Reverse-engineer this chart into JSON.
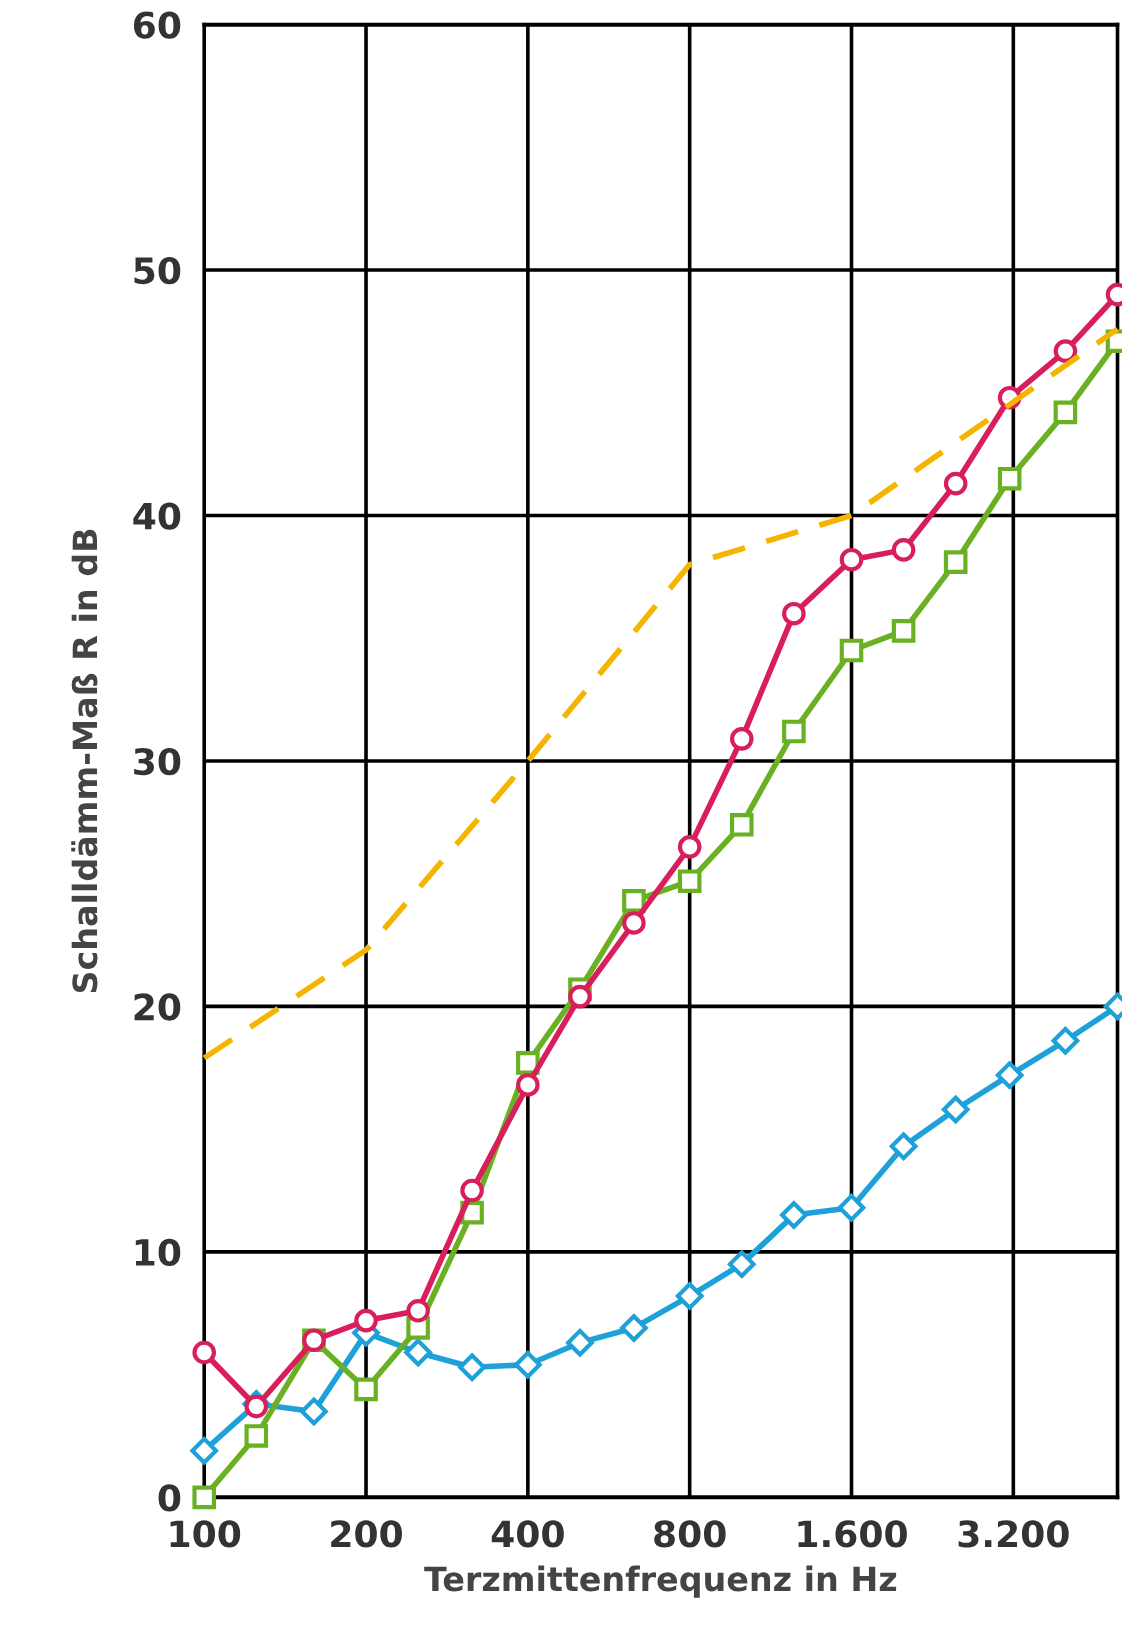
{
  "chart_data": {
    "type": "line",
    "xlabel": "Terzmittenfrequenz in Hz",
    "ylabel": "Schalldämm-Maß R in dB",
    "log": "x",
    "x": [
      100,
      125,
      160,
      200,
      250,
      315,
      400,
      500,
      630,
      800,
      1000,
      1250,
      1600,
      2000,
      2500,
      3150,
      4000,
      5000
    ],
    "series": [
      {
        "color": "#1ea0d8",
        "marker": "diamond",
        "values": [
          1.9,
          3.8,
          3.5,
          6.7,
          5.9,
          5.3,
          5.4,
          6.3,
          6.9,
          8.2,
          9.5,
          11.5,
          11.8,
          14.3,
          15.8,
          17.2,
          18.6,
          20.0
        ]
      },
      {
        "color": "#6ab023",
        "marker": "square",
        "values": [
          0,
          2.5,
          6.4,
          4.4,
          6.9,
          11.6,
          17.7,
          20.7,
          24.3,
          25.1,
          27.4,
          31.2,
          34.5,
          35.3,
          38.1,
          41.5,
          44.2,
          47.1
        ]
      },
      {
        "color": "#d81e5b",
        "marker": "circle",
        "values": [
          5.9,
          3.7,
          6.4,
          7.2,
          7.6,
          12.5,
          16.8,
          20.4,
          23.4,
          26.5,
          30.9,
          36.0,
          38.2,
          38.6,
          41.3,
          44.8,
          46.7,
          49.0
        ]
      },
      {
        "color": "#f5b400",
        "marker": "none",
        "line_style": "dashed",
        "x": [
          100,
          200,
          400,
          800,
          1600,
          5000
        ],
        "values": [
          17.9,
          22.3,
          30.0,
          38.0,
          40.0,
          47.6
        ]
      }
    ],
    "xlim": [
      100,
      5000
    ],
    "ylim": [
      0,
      60
    ],
    "xticks": [
      100,
      200,
      400,
      800,
      {
        "value": 1600,
        "label": "1.600"
      },
      {
        "value": 3200,
        "label": "3.200"
      }
    ],
    "yticks": [
      0,
      10,
      20,
      30,
      40,
      50,
      60
    ],
    "grid": true
  }
}
